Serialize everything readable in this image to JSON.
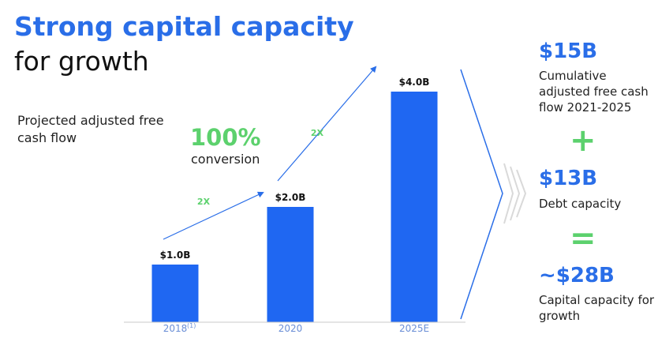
{
  "title": {
    "line1": "Strong capital capacity",
    "line2": "for growth"
  },
  "subtitle": "Projected adjusted free cash flow",
  "conversion": {
    "percent": "100%",
    "label": "conversion"
  },
  "chart_data": {
    "type": "bar",
    "categories": [
      "2018",
      "2020",
      "2025E"
    ],
    "category_footnotes": [
      "(1)",
      "",
      ""
    ],
    "values": [
      1.0,
      2.0,
      4.0
    ],
    "value_labels": [
      "$1.0B",
      "$2.0B",
      "$4.0B"
    ],
    "ylim": [
      0,
      4.0
    ],
    "growth_annotations": [
      "2X",
      "2X"
    ],
    "bar_color": "#1f67f2",
    "grid": false
  },
  "summary": {
    "fcf_value": "$15B",
    "fcf_label": "Cumulative adjusted free cash flow 2021-2025",
    "plus": "+",
    "debt_value": "$13B",
    "debt_label": "Debt capacity",
    "equals": "=",
    "total_value": "~$28B",
    "total_label": "Capital capacity for growth"
  },
  "colors": {
    "accent_blue": "#2a6ee8",
    "accent_green": "#5cd16d",
    "bar_blue": "#1f67f2"
  }
}
